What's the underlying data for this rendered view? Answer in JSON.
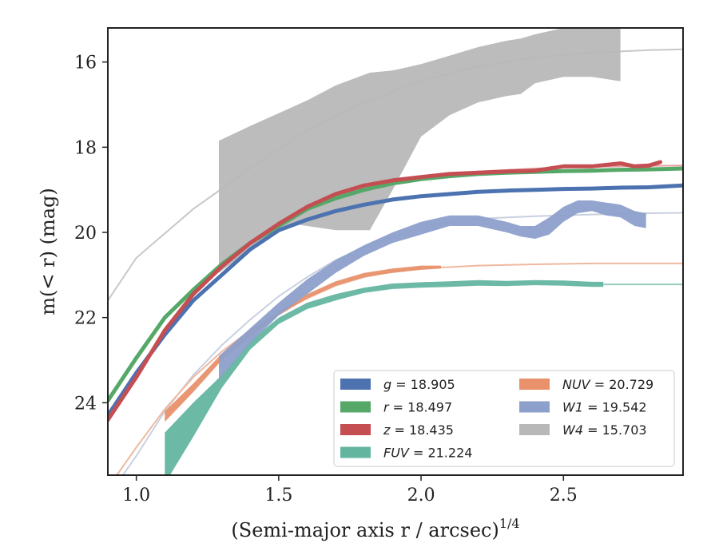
{
  "chart_data": {
    "type": "line",
    "xlabel": "(Semi-major axis r / arcsec)",
    "xlabel_exponent": "1/4",
    "ylabel": "m(< r) (mag)",
    "xlim": [
      0.9,
      2.92
    ],
    "ylim": [
      25.7,
      15.2
    ],
    "y_inverted": true,
    "xticks": [
      1.0,
      1.5,
      2.0,
      2.5
    ],
    "xtick_labels": [
      "1.0",
      "1.5",
      "2.0",
      "2.5"
    ],
    "yticks": [
      16,
      18,
      20,
      22,
      24
    ],
    "ytick_labels": [
      "16",
      "18",
      "20",
      "22",
      "24"
    ],
    "grid": false,
    "legend_placement": "lower-right",
    "series": [
      {
        "name": "g = 18.905",
        "color": "#4c72b0",
        "kind": "line",
        "x": [
          0.9,
          1.0,
          1.1,
          1.2,
          1.3,
          1.4,
          1.5,
          1.6,
          1.7,
          1.8,
          1.9,
          2.0,
          2.1,
          2.2,
          2.3,
          2.4,
          2.5,
          2.6,
          2.7,
          2.8,
          2.92
        ],
        "y": [
          24.3,
          23.3,
          22.4,
          21.6,
          21.0,
          20.4,
          19.95,
          19.7,
          19.5,
          19.35,
          19.23,
          19.15,
          19.1,
          19.05,
          19.02,
          19.0,
          18.98,
          18.97,
          18.95,
          18.94,
          18.9
        ]
      },
      {
        "name": "r = 18.497",
        "color": "#55a868",
        "kind": "line",
        "x": [
          0.9,
          1.0,
          1.1,
          1.2,
          1.3,
          1.4,
          1.5,
          1.6,
          1.7,
          1.8,
          1.9,
          2.0,
          2.1,
          2.2,
          2.3,
          2.4,
          2.5,
          2.6,
          2.7,
          2.8,
          2.92
        ],
        "y": [
          23.95,
          22.95,
          22.0,
          21.35,
          20.75,
          20.25,
          19.85,
          19.45,
          19.2,
          19.0,
          18.85,
          18.75,
          18.68,
          18.63,
          18.6,
          18.58,
          18.56,
          18.55,
          18.53,
          18.52,
          18.5
        ]
      },
      {
        "name": "z = 18.435",
        "color": "#c44e52",
        "kind": "line",
        "x": [
          0.9,
          1.0,
          1.1,
          1.2,
          1.3,
          1.4,
          1.5,
          1.6,
          1.7,
          1.8,
          1.9,
          2.0,
          2.1,
          2.2,
          2.3,
          2.4,
          2.5,
          2.6,
          2.7,
          2.75,
          2.8,
          2.84
        ],
        "y": [
          24.4,
          23.4,
          22.3,
          21.45,
          20.8,
          20.25,
          19.8,
          19.4,
          19.1,
          18.9,
          18.78,
          18.7,
          18.63,
          18.6,
          18.57,
          18.55,
          18.45,
          18.45,
          18.38,
          18.45,
          18.43,
          18.35
        ]
      },
      {
        "name": "FUV = 21.224",
        "color": "#64b5a0",
        "kind": "band",
        "x": [
          1.1,
          1.2,
          1.3,
          1.4,
          1.5,
          1.6,
          1.7,
          1.8,
          1.9,
          2.0,
          2.1,
          2.2,
          2.3,
          2.4,
          2.5,
          2.6,
          2.64
        ],
        "y_low": [
          25.9,
          24.8,
          23.65,
          22.75,
          22.15,
          21.8,
          21.6,
          21.42,
          21.33,
          21.3,
          21.28,
          21.25,
          21.26,
          21.24,
          21.25,
          21.28,
          21.28
        ],
        "y_high": [
          24.7,
          24.0,
          23.35,
          22.55,
          22.0,
          21.65,
          21.45,
          21.3,
          21.2,
          21.17,
          21.15,
          21.12,
          21.14,
          21.12,
          21.13,
          21.16,
          21.16
        ]
      },
      {
        "name": "NUV = 20.729",
        "color": "#e8916b",
        "kind": "band",
        "x": [
          1.1,
          1.2,
          1.3,
          1.4,
          1.5,
          1.6,
          1.7,
          1.8,
          1.9,
          2.0,
          2.07
        ],
        "y_low": [
          24.45,
          23.75,
          23.0,
          22.45,
          21.95,
          21.55,
          21.25,
          21.05,
          20.95,
          20.88,
          20.85
        ],
        "y_high": [
          24.2,
          23.55,
          22.85,
          22.3,
          21.85,
          21.45,
          21.15,
          20.95,
          20.85,
          20.78,
          20.78
        ]
      },
      {
        "name": "W1 = 19.542",
        "color": "#8da0cb",
        "kind": "band",
        "x": [
          1.29,
          1.4,
          1.5,
          1.6,
          1.7,
          1.8,
          1.9,
          2.0,
          2.1,
          2.2,
          2.3,
          2.35,
          2.4,
          2.45,
          2.5,
          2.55,
          2.6,
          2.65,
          2.7,
          2.75,
          2.79
        ],
        "y_low": [
          23.45,
          22.6,
          21.95,
          21.45,
          20.95,
          20.55,
          20.25,
          20.05,
          19.85,
          19.85,
          20.0,
          20.1,
          20.15,
          20.05,
          19.75,
          19.55,
          19.5,
          19.6,
          19.65,
          19.85,
          19.9
        ],
        "y_high": [
          22.9,
          22.25,
          21.65,
          21.1,
          20.65,
          20.3,
          20.0,
          19.75,
          19.6,
          19.6,
          19.75,
          19.85,
          19.85,
          19.65,
          19.4,
          19.25,
          19.25,
          19.3,
          19.35,
          19.5,
          19.55
        ]
      },
      {
        "name": "W4 = 15.703",
        "color": "#b8b8b8",
        "kind": "band",
        "x": [
          1.29,
          1.4,
          1.5,
          1.55,
          1.6,
          1.7,
          1.82,
          1.9,
          2.0,
          2.1,
          2.2,
          2.3,
          2.35,
          2.4,
          2.5,
          2.6,
          2.7
        ],
        "y_low": [
          20.95,
          20.4,
          19.95,
          19.8,
          19.85,
          19.95,
          19.95,
          19.0,
          17.75,
          17.25,
          16.95,
          16.8,
          16.75,
          16.5,
          16.35,
          16.35,
          16.45
        ],
        "y_high": [
          17.85,
          17.5,
          17.2,
          17.05,
          16.9,
          16.55,
          16.25,
          16.2,
          16.05,
          15.85,
          15.65,
          15.5,
          15.45,
          15.35,
          15.2,
          15.05,
          15.0
        ]
      }
    ],
    "model_curves": [
      {
        "color": "#c8c8c8",
        "x": [
          0.9,
          1.0,
          1.2,
          1.4,
          1.6,
          1.8,
          2.0,
          2.2,
          2.4,
          2.6,
          2.8,
          2.92
        ],
        "y": [
          21.6,
          20.6,
          19.45,
          18.5,
          17.6,
          16.95,
          16.45,
          16.1,
          15.9,
          15.78,
          15.72,
          15.7
        ]
      },
      {
        "color": "#c8d0e0",
        "x": [
          0.9,
          1.0,
          1.1,
          1.2,
          1.3,
          1.4,
          1.5,
          1.6,
          1.7,
          1.8,
          1.9,
          2.0,
          2.1,
          2.2,
          2.4,
          2.6,
          2.8,
          2.92
        ],
        "y": [
          26.2,
          25.25,
          24.2,
          23.35,
          22.65,
          22.05,
          21.5,
          21.05,
          20.65,
          20.35,
          20.1,
          19.9,
          19.75,
          19.68,
          19.62,
          19.58,
          19.55,
          19.54
        ]
      },
      {
        "color": "#efb8a0",
        "x": [
          0.9,
          1.0,
          1.1,
          1.2,
          1.3,
          1.4,
          1.5,
          1.6,
          1.7,
          1.8,
          1.9,
          2.0,
          2.2,
          2.4,
          2.6,
          2.8,
          2.92
        ],
        "y": [
          26.0,
          25.05,
          24.15,
          23.4,
          22.8,
          22.3,
          21.9,
          21.55,
          21.25,
          21.05,
          20.92,
          20.85,
          20.78,
          20.75,
          20.73,
          20.73,
          20.73
        ]
      },
      {
        "color": "#98cdbf",
        "x": [
          2.64,
          2.8,
          2.92
        ],
        "y": [
          21.22,
          21.22,
          21.22
        ]
      },
      {
        "color": "#e6a0a2",
        "x": [
          1.4,
          1.6,
          1.8,
          2.0,
          2.2,
          2.4,
          2.6,
          2.8,
          2.92
        ],
        "y": [
          20.25,
          19.4,
          18.95,
          18.7,
          18.57,
          18.5,
          18.46,
          18.44,
          18.43
        ]
      },
      {
        "color": "#a8d4b0",
        "x": [
          1.4,
          1.6,
          1.8,
          2.0,
          2.2,
          2.4,
          2.6,
          2.8,
          2.92
        ],
        "y": [
          20.2,
          19.45,
          19.0,
          18.75,
          18.62,
          18.56,
          18.52,
          18.5,
          18.5
        ]
      }
    ],
    "legend": [
      {
        "label": "g = 18.905",
        "color": "#4c72b0",
        "col": 0,
        "row": 0
      },
      {
        "label": "r = 18.497",
        "color": "#55a868",
        "col": 0,
        "row": 1
      },
      {
        "label": "z = 18.435",
        "color": "#c44e52",
        "col": 0,
        "row": 2
      },
      {
        "label": "FUV = 21.224",
        "color": "#64b5a0",
        "col": 0,
        "row": 3
      },
      {
        "label": "NUV = 20.729",
        "color": "#e8916b",
        "col": 1,
        "row": 0
      },
      {
        "label": "W1 = 19.542",
        "color": "#8da0cb",
        "col": 1,
        "row": 1
      },
      {
        "label": "W4 = 15.703",
        "color": "#b8b8b8",
        "col": 1,
        "row": 2
      }
    ]
  }
}
